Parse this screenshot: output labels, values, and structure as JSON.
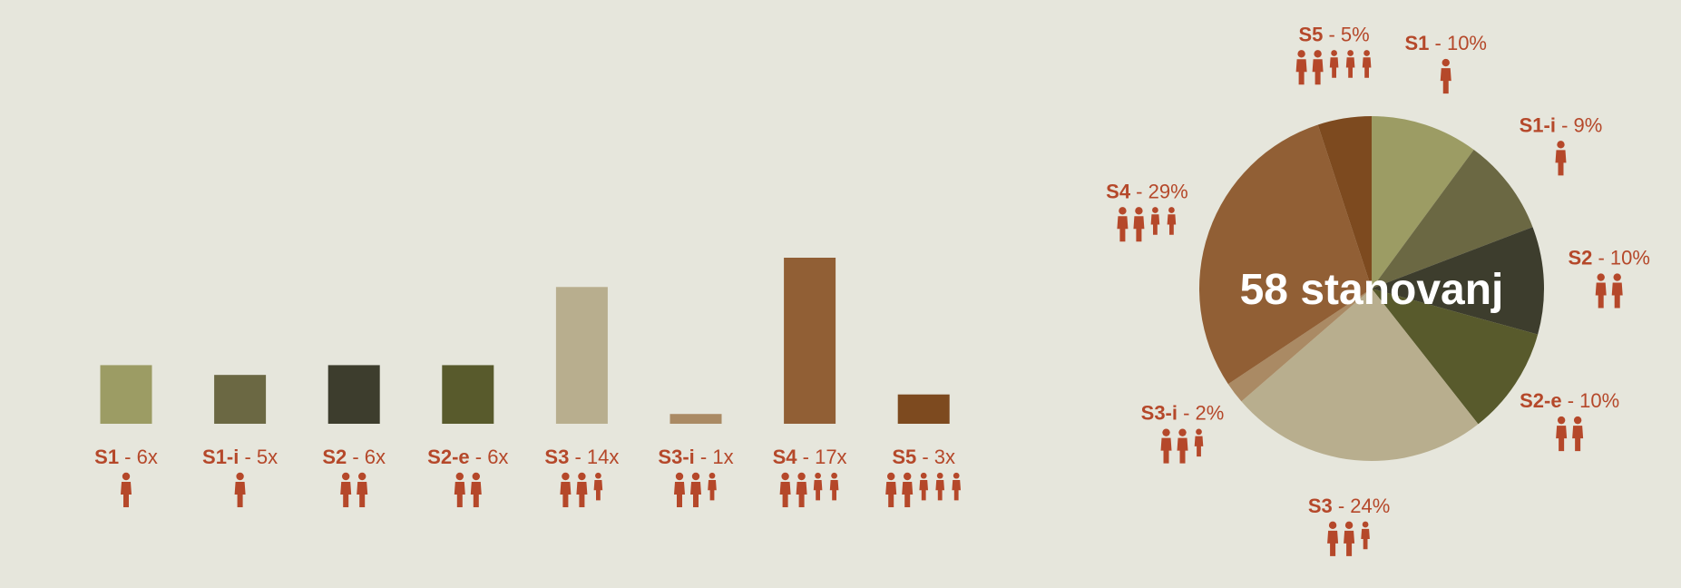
{
  "chart_data": [
    {
      "type": "bar",
      "categories": [
        "S1",
        "S1-i",
        "S2",
        "S2-e",
        "S3",
        "S3-i",
        "S4",
        "S5"
      ],
      "values": [
        6,
        5,
        6,
        6,
        14,
        1,
        17,
        3
      ],
      "value_suffix": "x",
      "colors": [
        "#9c9c64",
        "#6b6843",
        "#3d3d2d",
        "#585a2c",
        "#b8ae8e",
        "#aa8a64",
        "#915f35",
        "#7d4a1f"
      ],
      "people": [
        1,
        1,
        2,
        2,
        3,
        3,
        4,
        5
      ],
      "ylim": [
        0,
        17
      ]
    },
    {
      "type": "pie",
      "center_label": "58 stanovanj",
      "slices": [
        {
          "name": "S1",
          "value": 10,
          "color": "#9c9c64",
          "people": 1
        },
        {
          "name": "S1-i",
          "value": 9,
          "color": "#6b6843",
          "people": 1
        },
        {
          "name": "S2",
          "value": 10,
          "color": "#3d3d2d",
          "people": 2
        },
        {
          "name": "S2-e",
          "value": 10,
          "color": "#585a2c",
          "people": 2
        },
        {
          "name": "S3",
          "value": 24,
          "color": "#b8ae8e",
          "people": 3
        },
        {
          "name": "S3-i",
          "value": 2,
          "color": "#aa8a64",
          "people": 3
        },
        {
          "name": "S4",
          "value": 29,
          "color": "#915f35",
          "people": 4
        },
        {
          "name": "S5",
          "value": 5,
          "color": "#7d4a1f",
          "people": 5
        }
      ],
      "value_suffix": "%"
    }
  ],
  "colors": {
    "label": "#b5482a",
    "background": "#e6e6dc"
  }
}
